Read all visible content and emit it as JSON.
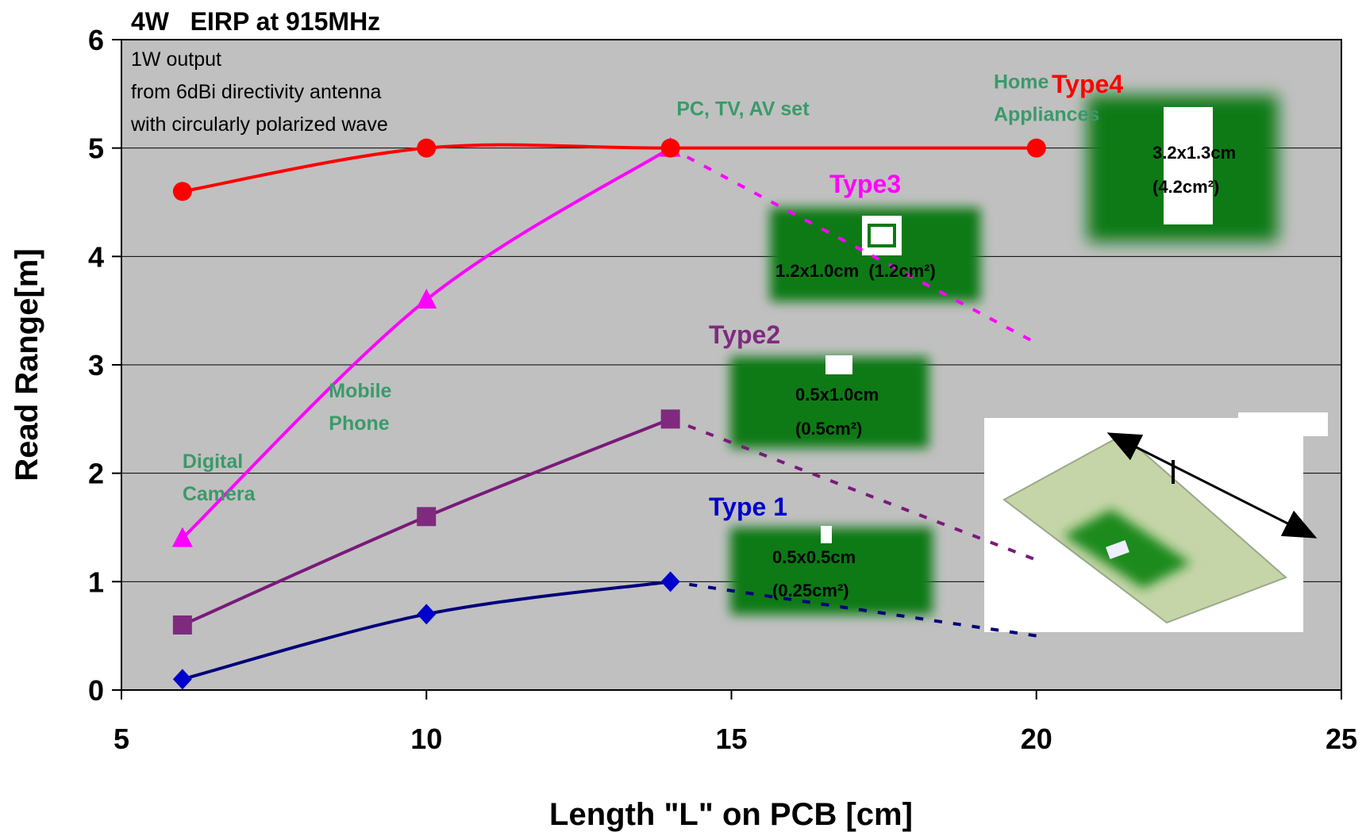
{
  "chart_data": {
    "type": "line",
    "title": "4W   EIRP at 915MHz",
    "xlabel": "Length \"L\" on PCB [cm]",
    "ylabel": "Read Range[m]",
    "xlim": [
      5,
      25
    ],
    "ylim": [
      0,
      6
    ],
    "xticks": [
      "5",
      "10",
      "15",
      "20",
      "25"
    ],
    "yticks": [
      "0",
      "1",
      "2",
      "3",
      "4",
      "5",
      "6"
    ],
    "grid": true,
    "note_lines": [
      "1W output",
      "from 6dBi directivity antenna",
      "with circularly polarized wave"
    ],
    "applications": [
      {
        "lines": [
          "Digital",
          "Camera"
        ],
        "x": 6,
        "y": 2.05
      },
      {
        "lines": [
          "Mobile",
          "Phone"
        ],
        "x": 8.4,
        "y": 2.7
      },
      {
        "lines": [
          "PC, TV, AV set"
        ],
        "x": 14.1,
        "y": 5.3
      },
      {
        "lines": [
          "Home",
          "Appliances"
        ],
        "x": 19.3,
        "y": 5.55
      }
    ],
    "series": [
      {
        "name": "Type 1",
        "color": "#0000cc",
        "line_color": "#00007a",
        "marker": "diamond",
        "x": [
          6,
          10,
          14
        ],
        "y": [
          0.1,
          0.7,
          1.0
        ],
        "dashed_x": [
          14,
          20
        ],
        "dashed_y": [
          1.0,
          0.5
        ],
        "size_lines": [
          "0.5x0.5cm",
          "(0.25cm²)"
        ]
      },
      {
        "name": "Type2",
        "color": "#7f2a7f",
        "line_color": "#7a1a7a",
        "marker": "square",
        "x": [
          6,
          10,
          14
        ],
        "y": [
          0.6,
          1.6,
          2.5
        ],
        "dashed_x": [
          14,
          20
        ],
        "dashed_y": [
          2.5,
          1.2
        ],
        "size_lines": [
          "0.5x1.0cm",
          "(0.5cm²)"
        ]
      },
      {
        "name": "Type3",
        "color": "#ff00ff",
        "line_color": "#ff00ff",
        "marker": "triangle",
        "x": [
          6,
          10,
          14
        ],
        "y": [
          1.4,
          3.6,
          5.0
        ],
        "dashed_x": [
          14,
          20
        ],
        "dashed_y": [
          5.0,
          3.2
        ],
        "size_lines": [
          "1.2x1.0cm  (1.2cm²)"
        ]
      },
      {
        "name": "Type4",
        "color": "#ff0000",
        "line_color": "#ff0000",
        "marker": "circle",
        "x": [
          6,
          10,
          14,
          20
        ],
        "y": [
          4.6,
          5.0,
          5.0,
          5.0
        ],
        "dashed_x": [],
        "dashed_y": [],
        "size_lines": [
          "3.2x1.3cm",
          "(4.2cm²)"
        ]
      }
    ],
    "colors": {
      "plot_bg": "#c0c0c0",
      "grid": "#000000",
      "app_text": "#3a9a6a",
      "board_green": "#0a7a14",
      "pcb": "#c5d5a8"
    }
  }
}
